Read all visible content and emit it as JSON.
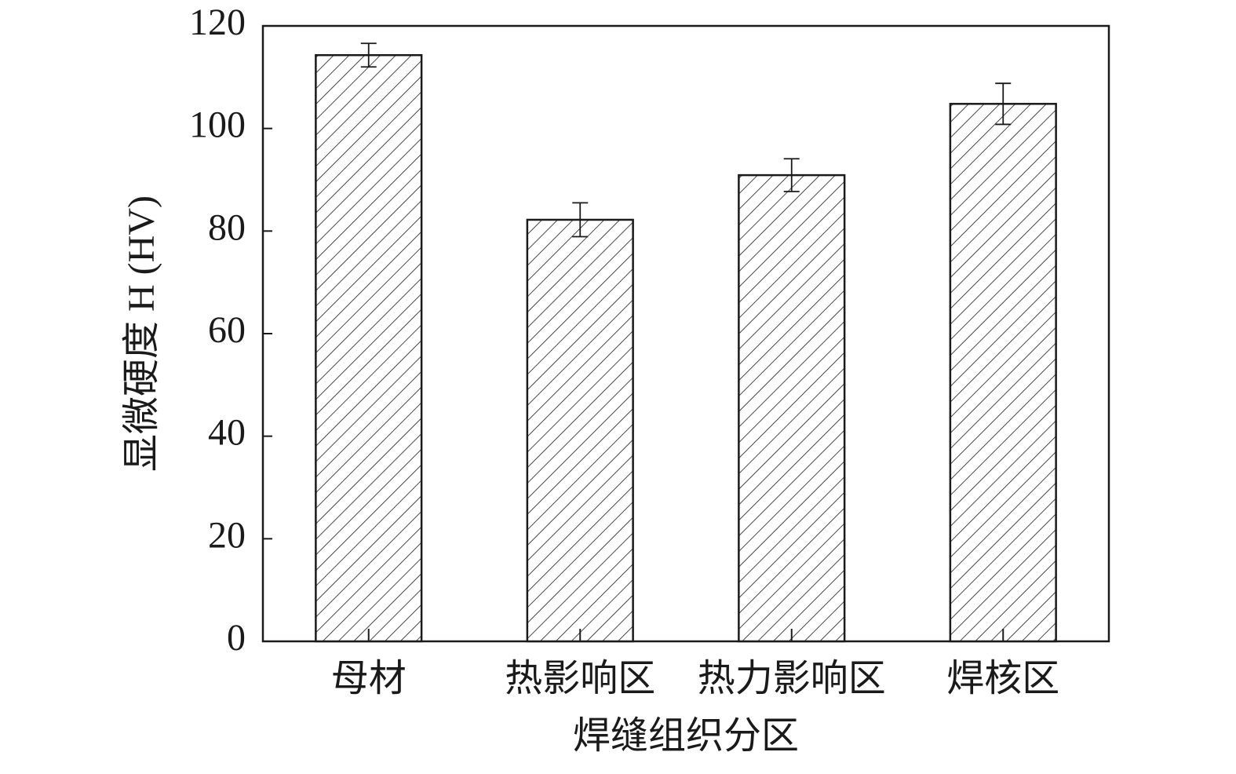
{
  "chart_data": {
    "type": "bar",
    "y_label": "显微硬度 H (HV)",
    "x_label": "焊缝组织分区",
    "categories": [
      "母材",
      "热影响区",
      "热力影响区",
      "焊核区"
    ],
    "values": [
      114.3,
      82.2,
      90.9,
      104.8
    ],
    "errors": [
      2.3,
      3.3,
      3.2,
      4.0
    ],
    "color": "#1a1a1a",
    "ylim": [
      0,
      120
    ],
    "yticks": [
      0,
      20,
      40,
      60,
      80,
      100,
      120
    ],
    "grid": false
  }
}
